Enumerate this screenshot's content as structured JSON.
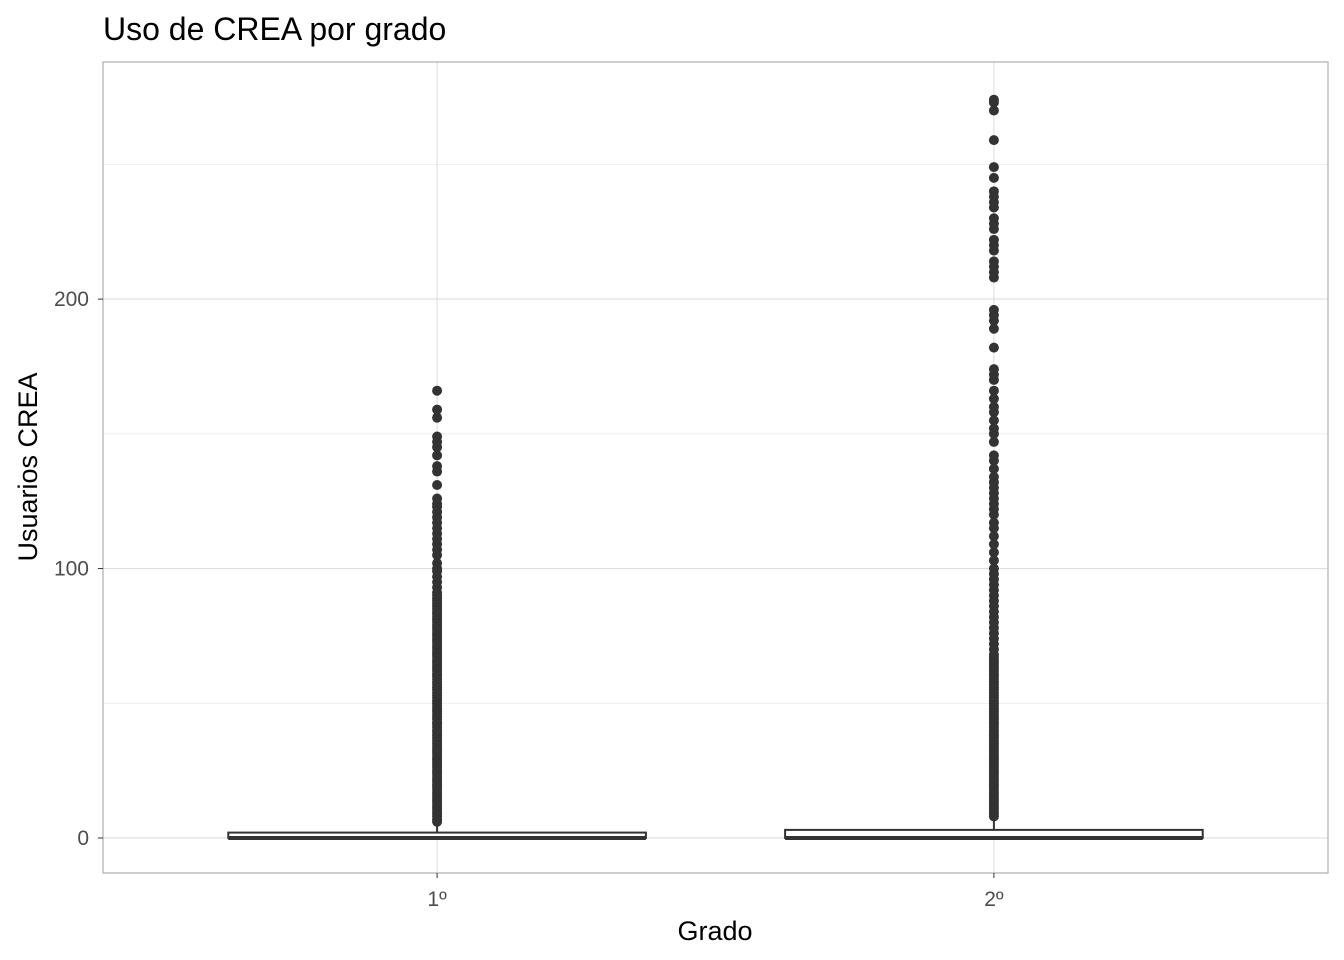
{
  "chart_data": {
    "type": "boxplot",
    "title": "Uso de CREA por grado",
    "xlabel": "Grado",
    "ylabel": "Usuarios CREA",
    "categories": [
      "1º",
      "2º"
    ],
    "ylim": [
      -13,
      288
    ],
    "yticks": [
      0,
      100,
      200
    ],
    "grid": true,
    "legend": "none",
    "colors": {
      "box_stroke": "#333333",
      "grid": "#dedede",
      "text": "#4d4d4d"
    },
    "boxes": [
      {
        "category": "1º",
        "min": 0,
        "q1": 0,
        "median": 0,
        "q3": 2,
        "max": 5,
        "outliers": [
          6,
          7,
          8,
          9,
          10,
          11,
          12,
          13,
          14,
          15,
          16,
          17,
          18,
          19,
          20,
          21,
          22,
          23,
          24,
          25,
          26,
          27,
          28,
          29,
          30,
          31,
          32,
          33,
          34,
          35,
          36,
          37,
          38,
          39,
          40,
          41,
          42,
          43,
          44,
          45,
          46,
          47,
          48,
          49,
          50,
          51,
          52,
          53,
          54,
          55,
          56,
          57,
          58,
          59,
          60,
          61,
          62,
          63,
          64,
          65,
          66,
          67,
          68,
          69,
          70,
          71,
          72,
          73,
          74,
          75,
          76,
          77,
          78,
          79,
          80,
          81,
          82,
          83,
          84,
          85,
          86,
          87,
          88,
          89,
          90,
          91,
          93,
          95,
          97,
          99,
          100,
          102,
          105,
          107,
          109,
          111,
          113,
          115,
          117,
          119,
          121,
          123,
          124,
          126,
          131,
          136,
          138,
          142,
          145,
          147,
          149,
          156,
          159,
          166
        ]
      },
      {
        "category": "2º",
        "min": 0,
        "q1": 0,
        "median": 0,
        "q3": 3,
        "max": 7,
        "outliers": [
          8,
          9,
          10,
          11,
          12,
          13,
          14,
          15,
          16,
          17,
          18,
          19,
          20,
          21,
          22,
          23,
          24,
          25,
          26,
          27,
          28,
          29,
          30,
          31,
          32,
          33,
          34,
          35,
          36,
          37,
          38,
          39,
          40,
          41,
          42,
          43,
          44,
          45,
          46,
          47,
          48,
          49,
          50,
          51,
          52,
          53,
          54,
          55,
          56,
          57,
          58,
          59,
          60,
          61,
          62,
          63,
          64,
          65,
          66,
          67,
          68,
          70,
          72,
          74,
          76,
          78,
          80,
          82,
          84,
          86,
          88,
          90,
          92,
          94,
          96,
          98,
          100,
          103,
          106,
          109,
          112,
          115,
          117,
          120,
          122,
          124,
          126,
          128,
          130,
          132,
          134,
          137,
          140,
          142,
          147,
          150,
          152,
          155,
          158,
          160,
          163,
          166,
          170,
          172,
          174,
          182,
          189,
          192,
          194,
          196,
          208,
          210,
          212,
          214,
          218,
          220,
          222,
          226,
          228,
          230,
          234,
          236,
          238,
          240,
          245,
          249,
          259,
          270,
          273,
          274
        ]
      }
    ]
  }
}
